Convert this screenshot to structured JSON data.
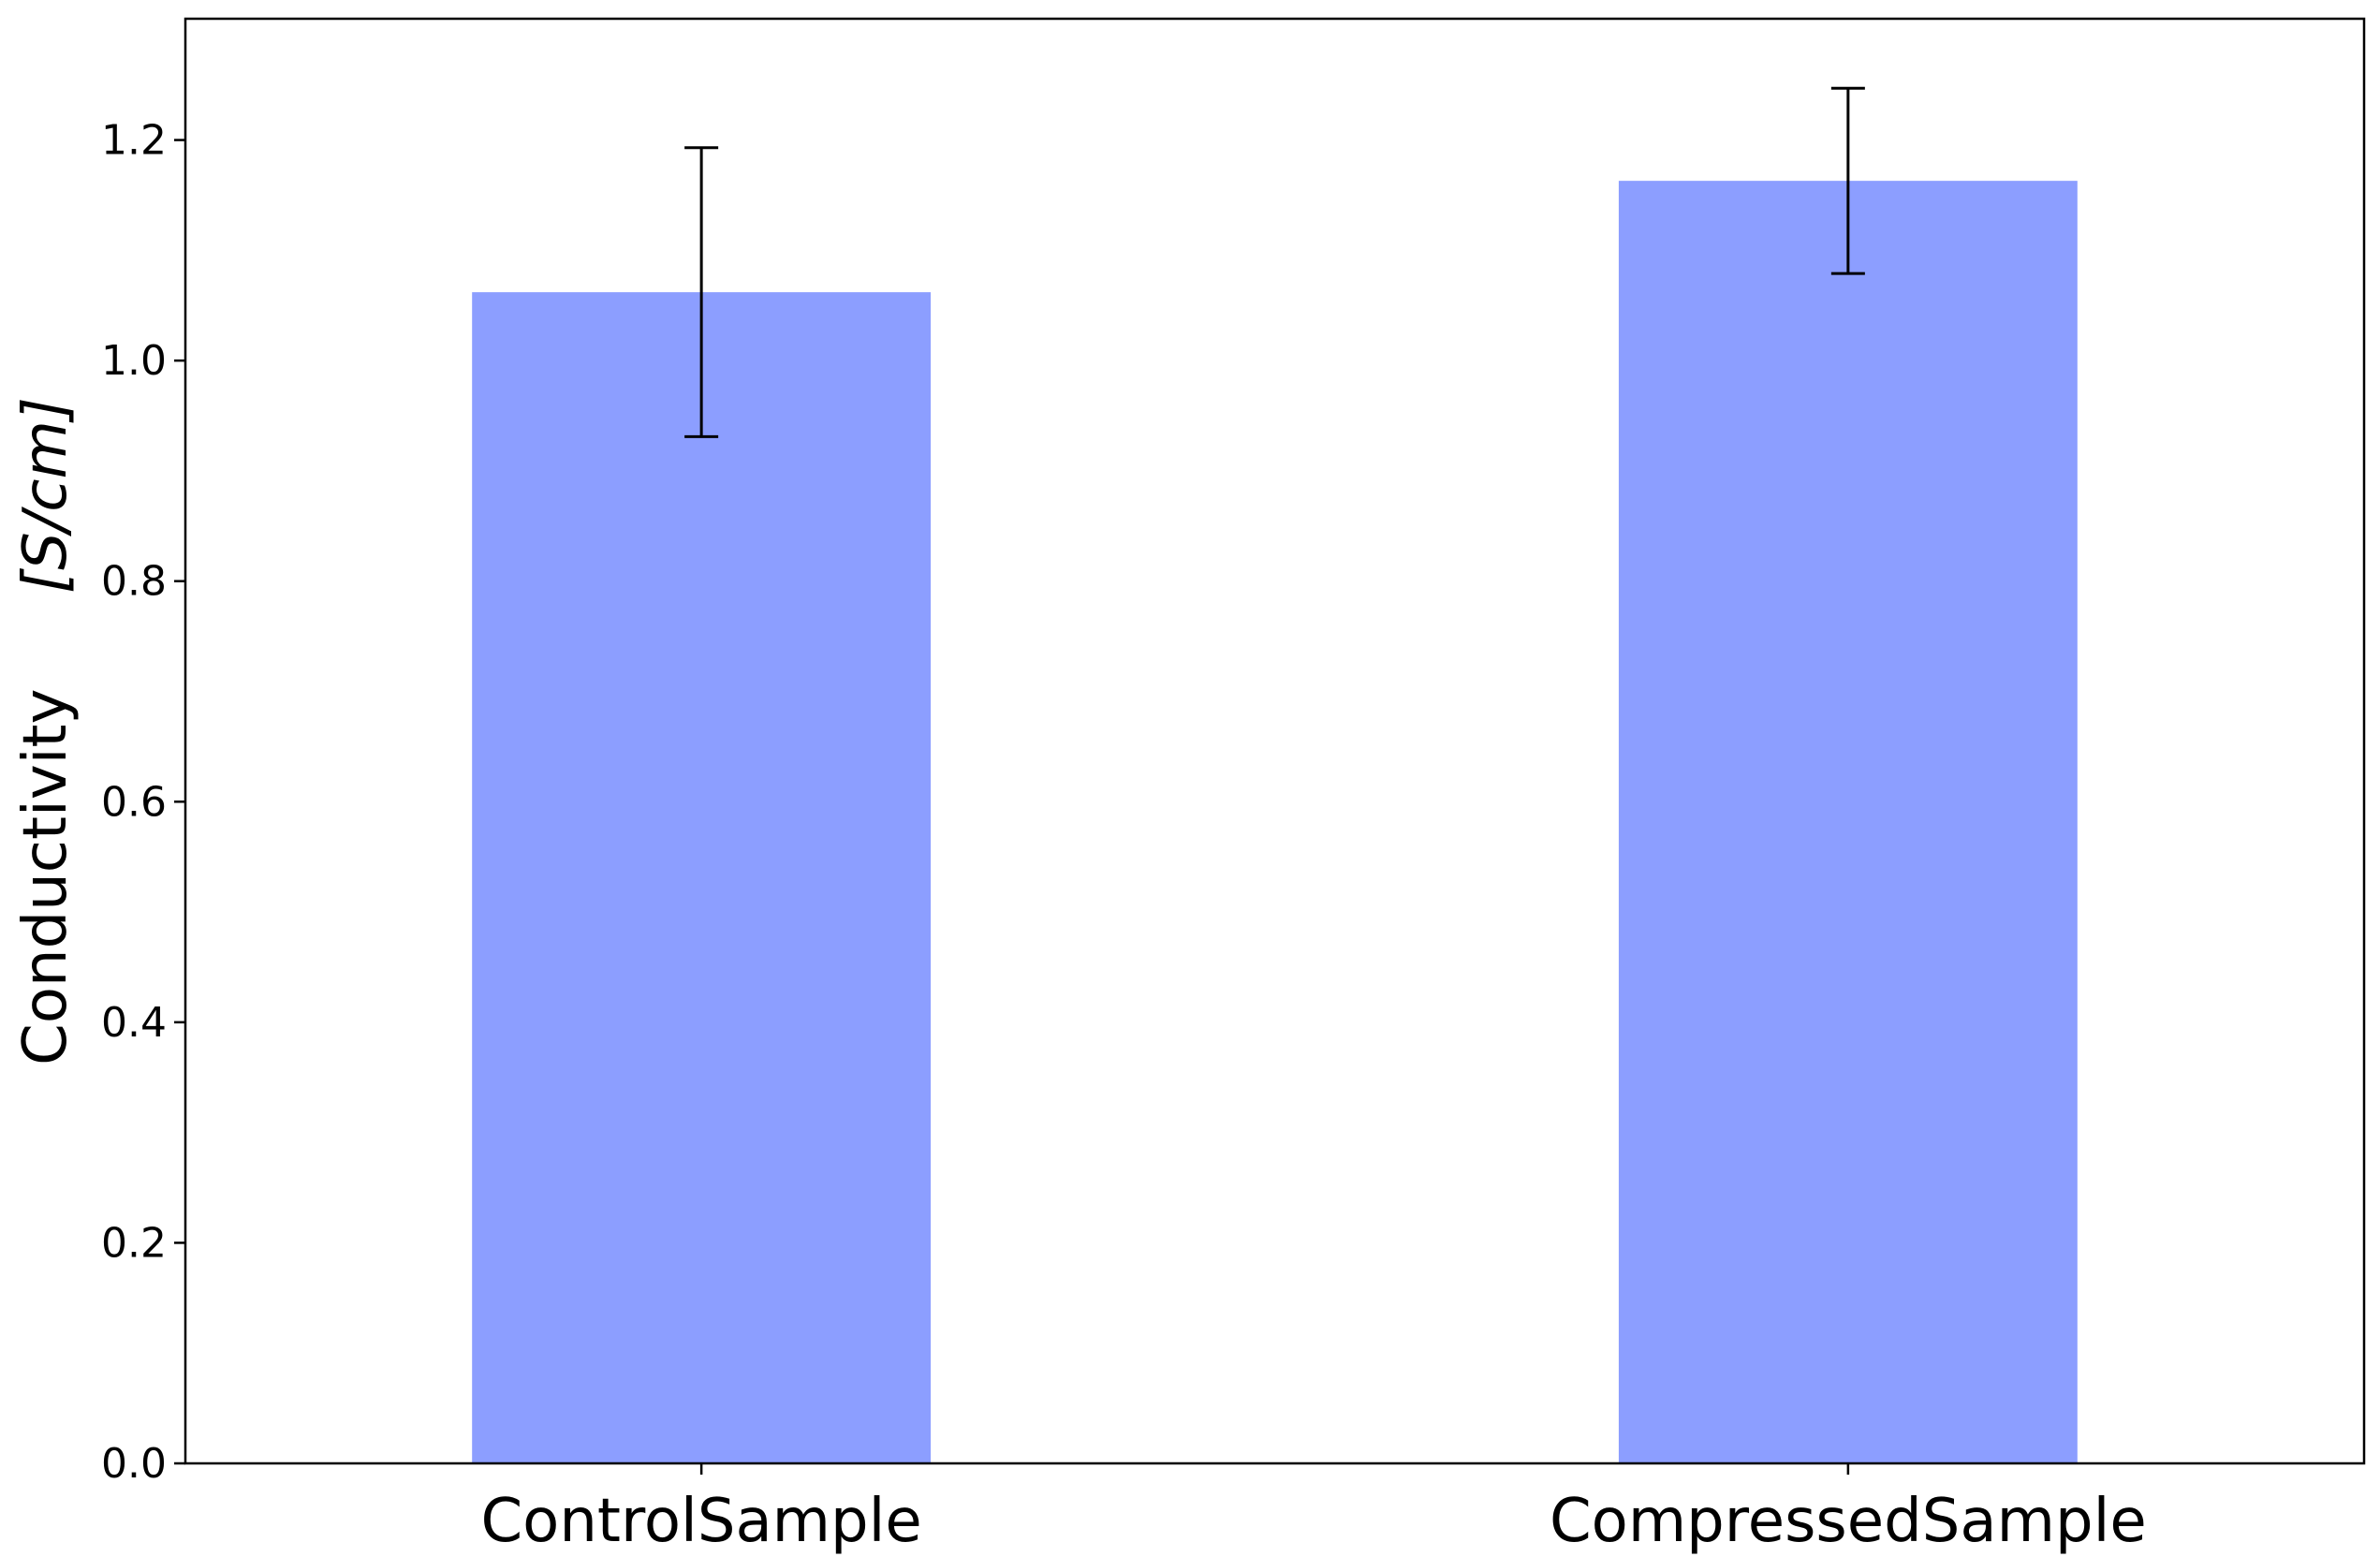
{
  "chart_data": {
    "type": "bar",
    "title": "",
    "xlabel": "",
    "ylabel": "Conductivity",
    "ylabel_unit": "[S/cm]",
    "categories": [
      "ControlSample",
      "CompressedSample"
    ],
    "values": [
      1.062,
      1.163
    ],
    "errors": [
      0.131,
      0.084
    ],
    "ylim": [
      0,
      1.31
    ],
    "yticks": [
      0.0,
      0.2,
      0.4,
      0.6,
      0.8,
      1.0,
      1.2
    ],
    "ytick_labels": [
      "0.0",
      "0.2",
      "0.4",
      "0.6",
      "0.8",
      "1.0",
      "1.2"
    ],
    "grid": false,
    "legend": "none",
    "colors": {
      "bar": "#8c9eff",
      "error_bar": "#000000",
      "axis": "#000000"
    }
  }
}
